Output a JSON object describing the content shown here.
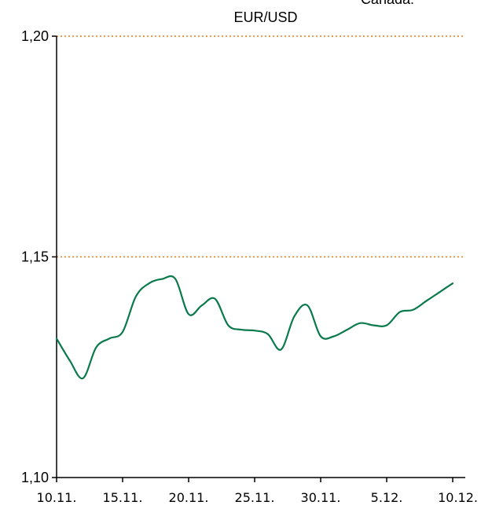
{
  "chart_data": {
    "type": "line",
    "title": "EUR/USD",
    "top_right_text": "Canada:",
    "xlabel": "",
    "ylabel": "",
    "ylim": [
      1.1,
      1.2
    ],
    "y_ticks": [
      {
        "value": 1.1,
        "label": "1,10"
      },
      {
        "value": 1.15,
        "label": "1,15"
      },
      {
        "value": 1.2,
        "label": "1,20"
      }
    ],
    "x_start": "2021-11-10",
    "x_end": "2021-12-10",
    "x_ticks": [
      {
        "x": "2021-11-10",
        "label": "10.11."
      },
      {
        "x": "2021-11-15",
        "label": "15.11."
      },
      {
        "x": "2021-11-20",
        "label": "20.11."
      },
      {
        "x": "2021-11-25",
        "label": "25.11."
      },
      {
        "x": "2021-11-30",
        "label": "30.11."
      },
      {
        "x": "2021-12-05",
        "label": "5.12."
      },
      {
        "x": "2021-12-10",
        "label": "10.12."
      }
    ],
    "reference_lines": [
      1.15,
      1.2
    ],
    "grid": false,
    "colors": {
      "series": "#0a7a4c",
      "reference": "#e07b20",
      "axis": "#000000"
    },
    "series": [
      {
        "x": [
          "2021-11-10",
          "2021-11-11",
          "2021-11-12",
          "2021-11-13",
          "2021-11-14",
          "2021-11-15",
          "2021-11-16",
          "2021-11-17",
          "2021-11-18",
          "2021-11-19",
          "2021-11-20",
          "2021-11-21",
          "2021-11-22",
          "2021-11-23",
          "2021-11-24",
          "2021-11-25",
          "2021-11-26",
          "2021-11-27",
          "2021-11-28",
          "2021-11-29",
          "2021-11-30",
          "2021-12-01",
          "2021-12-02",
          "2021-12-03",
          "2021-12-04",
          "2021-12-05",
          "2021-12-06",
          "2021-12-07",
          "2021-12-08",
          "2021-12-09",
          "2021-12-10"
        ],
        "y": [
          1.1315,
          1.1265,
          1.1225,
          1.1295,
          1.1315,
          1.133,
          1.141,
          1.144,
          1.145,
          1.145,
          1.137,
          1.139,
          1.1405,
          1.1345,
          1.1335,
          1.1333,
          1.1325,
          1.129,
          1.1365,
          1.139,
          1.132,
          1.132,
          1.1335,
          1.135,
          1.1345,
          1.1345,
          1.1375,
          1.138,
          1.14,
          1.142,
          1.144
        ]
      }
    ]
  }
}
